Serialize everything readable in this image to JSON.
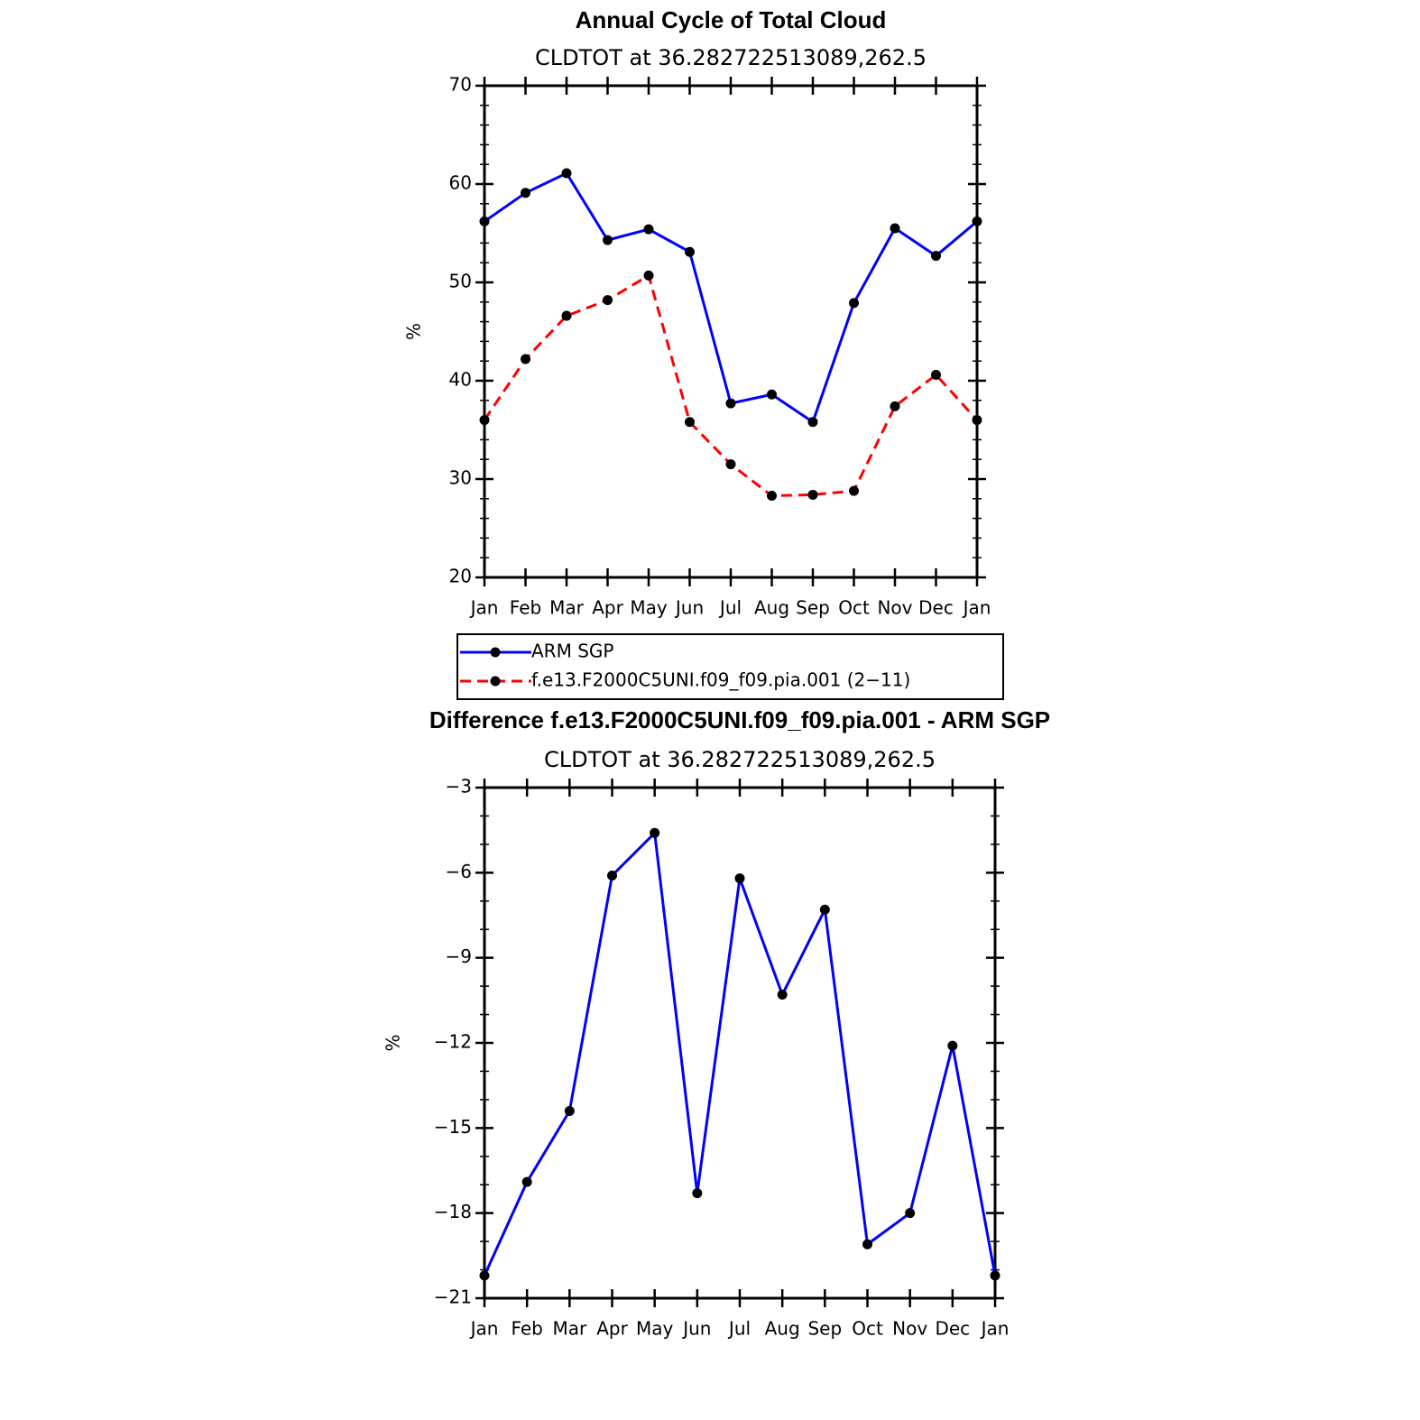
{
  "chart_data": [
    {
      "type": "line",
      "title": "Annual Cycle of Total Cloud",
      "subtitle": "CLDTOT at 36.282722513089,262.5",
      "ylabel": "%",
      "categories": [
        "Jan",
        "Feb",
        "Mar",
        "Apr",
        "May",
        "Jun",
        "Jul",
        "Aug",
        "Sep",
        "Oct",
        "Nov",
        "Dec",
        "Jan"
      ],
      "series": [
        {
          "name": "ARM SGP",
          "color": "#0000ff",
          "line_style": "solid",
          "values": [
            56.2,
            59.1,
            61.1,
            54.3,
            55.4,
            53.1,
            37.7,
            38.6,
            35.8,
            47.9,
            55.5,
            52.7,
            56.2
          ]
        },
        {
          "name": "f.e13.F2000C5UNI.f09_f09.pia.001 (2−11)",
          "color": "#ff0000",
          "line_style": "dashed",
          "values": [
            36.0,
            42.2,
            46.6,
            48.2,
            50.7,
            35.8,
            31.5,
            28.3,
            28.4,
            28.8,
            37.4,
            40.6,
            36.0
          ]
        }
      ],
      "ylim": [
        20,
        70
      ],
      "yticks": [
        20,
        30,
        40,
        50,
        60,
        70
      ],
      "legend_position": "bottom"
    },
    {
      "type": "line",
      "title": "Difference f.e13.F2000C5UNI.f09_f09.pia.001 - ARM SGP",
      "subtitle": "CLDTOT at 36.282722513089,262.5",
      "ylabel": "%",
      "categories": [
        "Jan",
        "Feb",
        "Mar",
        "Apr",
        "May",
        "Jun",
        "Jul",
        "Aug",
        "Sep",
        "Oct",
        "Nov",
        "Dec",
        "Jan"
      ],
      "color": "#0000ff",
      "values": [
        -20.2,
        -16.9,
        -14.4,
        -6.1,
        -4.6,
        -17.3,
        -6.2,
        -10.3,
        -7.3,
        -19.1,
        -18.0,
        -12.1,
        -20.2
      ],
      "ylim": [
        -21,
        -3
      ],
      "yticks": [
        {
          "value": -21,
          "label": "−21"
        },
        {
          "value": -18,
          "label": "−18"
        },
        {
          "value": -15,
          "label": "−15"
        },
        {
          "value": -12,
          "label": "−12"
        },
        {
          "value": -9,
          "label": "−9"
        },
        {
          "value": -6,
          "label": "−6"
        },
        {
          "value": -3,
          "label": "−3"
        }
      ]
    }
  ]
}
